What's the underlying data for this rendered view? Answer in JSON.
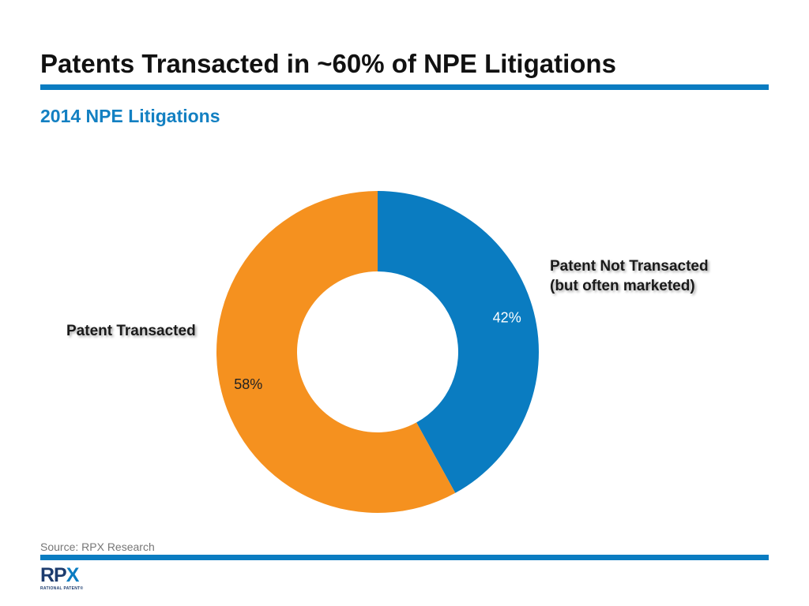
{
  "title": "Patents Transacted in ~60% of NPE Litigations",
  "subtitle": "2014 NPE Litigations",
  "source": "Source: RPX Research",
  "logo": {
    "text": "RPX",
    "tagline": "RATIONAL PATENT®"
  },
  "colors": {
    "accent": "#0a7cc1",
    "transacted": "#f5911f",
    "not_transacted": "#0a7cc1"
  },
  "chart_data": {
    "type": "pie",
    "title": "2014 NPE Litigations",
    "donut": true,
    "slices": [
      {
        "label": "Patent Not Transacted (but often marketed)",
        "label_lines": [
          "Patent Not Transacted",
          "(but often marketed)"
        ],
        "value": 42,
        "display": "42%",
        "color": "#0a7cc1"
      },
      {
        "label": "Patent Transacted",
        "label_lines": [
          "Patent Transacted"
        ],
        "value": 58,
        "display": "58%",
        "color": "#f5911f"
      }
    ]
  }
}
